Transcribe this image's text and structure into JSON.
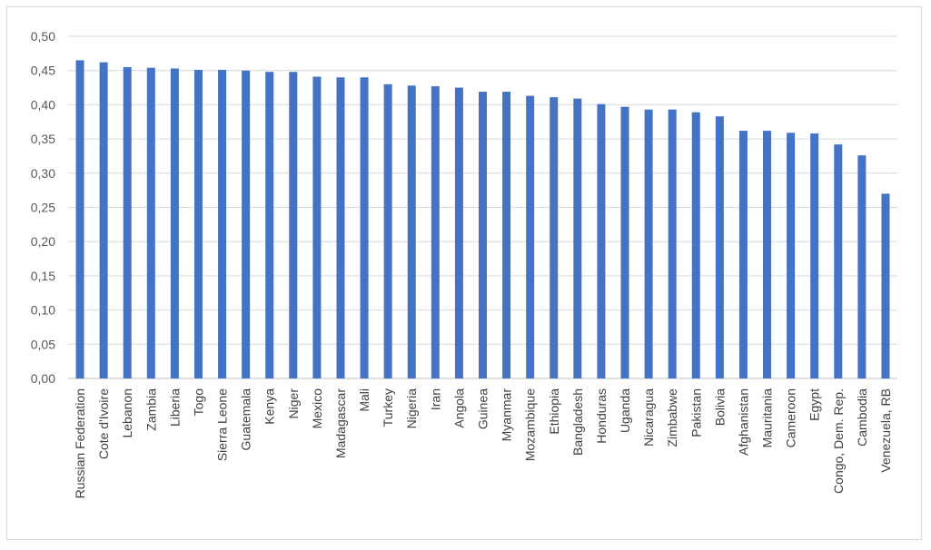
{
  "chart_data": {
    "type": "bar",
    "title": "",
    "xlabel": "",
    "ylabel": "",
    "ylim": [
      0,
      0.5
    ],
    "y_ticks": [
      "0,00",
      "0,05",
      "0,10",
      "0,15",
      "0,20",
      "0,25",
      "0,30",
      "0,35",
      "0,40",
      "0,45",
      "0,50"
    ],
    "grid": true,
    "legend": "none",
    "bar_color": "#4472c4",
    "categories": [
      "Russian Federation",
      "Cote d'Ivoire",
      "Lebanon",
      "Zambia",
      "Liberia",
      "Togo",
      "Sierra Leone",
      "Guatemala",
      "Kenya",
      "Niger",
      "Mexico",
      "Madagascar",
      "Mali",
      "Turkey",
      "Nigeria",
      "Iran",
      "Angola",
      "Guinea",
      "Myanmar",
      "Mozambique",
      "Ethiopia",
      "Bangladesh",
      "Honduras",
      "Uganda",
      "Nicaragua",
      "Zimbabwe",
      "Pakistan",
      "Bolivia",
      "Afghanistan",
      "Mauritania",
      "Cameroon",
      "Egypt",
      "Congo, Dem. Rep.",
      "Cambodia",
      "Venezuela, RB"
    ],
    "values": [
      0.465,
      0.462,
      0.455,
      0.454,
      0.453,
      0.451,
      0.451,
      0.45,
      0.448,
      0.448,
      0.441,
      0.44,
      0.44,
      0.43,
      0.428,
      0.427,
      0.425,
      0.419,
      0.419,
      0.413,
      0.411,
      0.409,
      0.401,
      0.397,
      0.393,
      0.393,
      0.389,
      0.383,
      0.362,
      0.362,
      0.359,
      0.358,
      0.342,
      0.326,
      0.27
    ]
  }
}
